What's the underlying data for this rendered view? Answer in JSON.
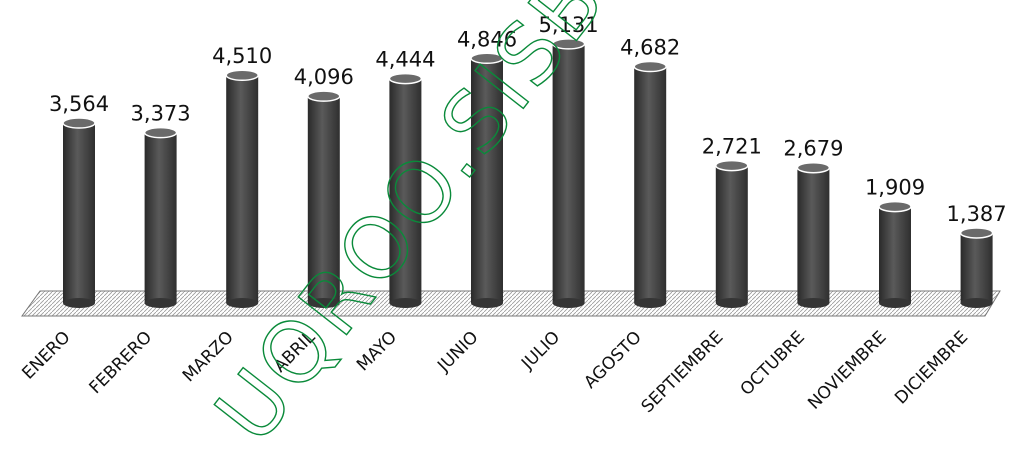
{
  "watermark": "UQROO.SISB",
  "chart_data": {
    "type": "bar",
    "categories": [
      "ENERO",
      "FEBRERO",
      "MARZO",
      "ABRIL",
      "MAYO",
      "JUNIO",
      "JULIO",
      "AGOSTO",
      "SEPTIEMBRE",
      "OCTUBRE",
      "NOVIEMBRE",
      "DICIEMBRE"
    ],
    "values": [
      3564,
      3373,
      4510,
      4096,
      4444,
      4846,
      5131,
      4682,
      2721,
      2679,
      1909,
      1387
    ],
    "value_labels": [
      "3,564",
      "3,373",
      "4,510",
      "4,096",
      "4,444",
      "4,846",
      "5,131",
      "4,682",
      "2,721",
      "2,679",
      "1,909",
      "1,387"
    ],
    "title": "",
    "xlabel": "",
    "ylabel": "",
    "ylim": [
      0,
      5500
    ],
    "grid": false,
    "bar_shape": "cylinder",
    "bar_color": "#4a4a4a"
  }
}
